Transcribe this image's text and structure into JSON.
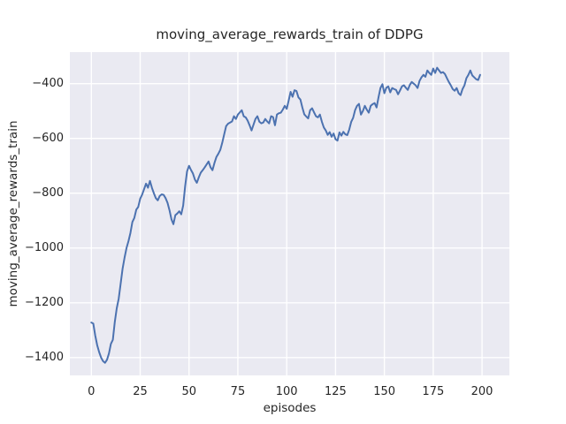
{
  "chart_data": {
    "type": "line",
    "title": "moving_average_rewards_train of DDPG",
    "xlabel": "episodes",
    "ylabel": "moving_average_rewards_train",
    "x_ticks": [
      0,
      25,
      50,
      75,
      100,
      125,
      150,
      175,
      200
    ],
    "y_ticks": [
      -400,
      -600,
      -800,
      -1000,
      -1200,
      -1400
    ],
    "xlim": [
      -11,
      214
    ],
    "ylim": [
      -1465,
      -285
    ],
    "grid": true,
    "legend": false,
    "colors": {
      "line": "#4c72b0",
      "plot_bg": "#eaeaf2",
      "grid": "#ffffff",
      "text": "#262626"
    },
    "series": [
      {
        "name": "moving_average_rewards_train",
        "x_start": 0,
        "x_step": 1,
        "values": [
          -1272,
          -1276,
          -1320,
          -1355,
          -1380,
          -1400,
          -1413,
          -1419,
          -1408,
          -1385,
          -1350,
          -1335,
          -1270,
          -1220,
          -1185,
          -1130,
          -1075,
          -1035,
          -1000,
          -975,
          -945,
          -905,
          -890,
          -860,
          -850,
          -820,
          -805,
          -785,
          -765,
          -780,
          -755,
          -780,
          -800,
          -818,
          -826,
          -810,
          -804,
          -806,
          -818,
          -835,
          -862,
          -895,
          -913,
          -880,
          -874,
          -866,
          -877,
          -845,
          -775,
          -720,
          -700,
          -715,
          -728,
          -750,
          -762,
          -742,
          -725,
          -716,
          -706,
          -695,
          -684,
          -705,
          -716,
          -690,
          -668,
          -656,
          -642,
          -616,
          -585,
          -555,
          -546,
          -542,
          -538,
          -519,
          -529,
          -513,
          -505,
          -497,
          -519,
          -523,
          -535,
          -552,
          -571,
          -550,
          -529,
          -519,
          -539,
          -545,
          -542,
          -529,
          -538,
          -545,
          -519,
          -522,
          -552,
          -513,
          -508,
          -506,
          -495,
          -481,
          -492,
          -462,
          -430,
          -448,
          -424,
          -427,
          -450,
          -458,
          -487,
          -512,
          -520,
          -527,
          -497,
          -490,
          -505,
          -519,
          -523,
          -513,
          -539,
          -560,
          -571,
          -587,
          -577,
          -594,
          -582,
          -603,
          -608,
          -578,
          -590,
          -576,
          -585,
          -588,
          -568,
          -540,
          -525,
          -497,
          -481,
          -474,
          -513,
          -500,
          -481,
          -495,
          -506,
          -481,
          -475,
          -471,
          -487,
          -450,
          -416,
          -402,
          -435,
          -415,
          -410,
          -432,
          -416,
          -420,
          -423,
          -439,
          -425,
          -410,
          -406,
          -415,
          -423,
          -405,
          -394,
          -400,
          -406,
          -416,
          -390,
          -377,
          -368,
          -375,
          -352,
          -361,
          -368,
          -345,
          -361,
          -342,
          -352,
          -361,
          -358,
          -365,
          -380,
          -394,
          -406,
          -420,
          -426,
          -416,
          -435,
          -442,
          -420,
          -406,
          -380,
          -368,
          -352,
          -370,
          -377,
          -384,
          -387,
          -368
        ]
      }
    ]
  }
}
